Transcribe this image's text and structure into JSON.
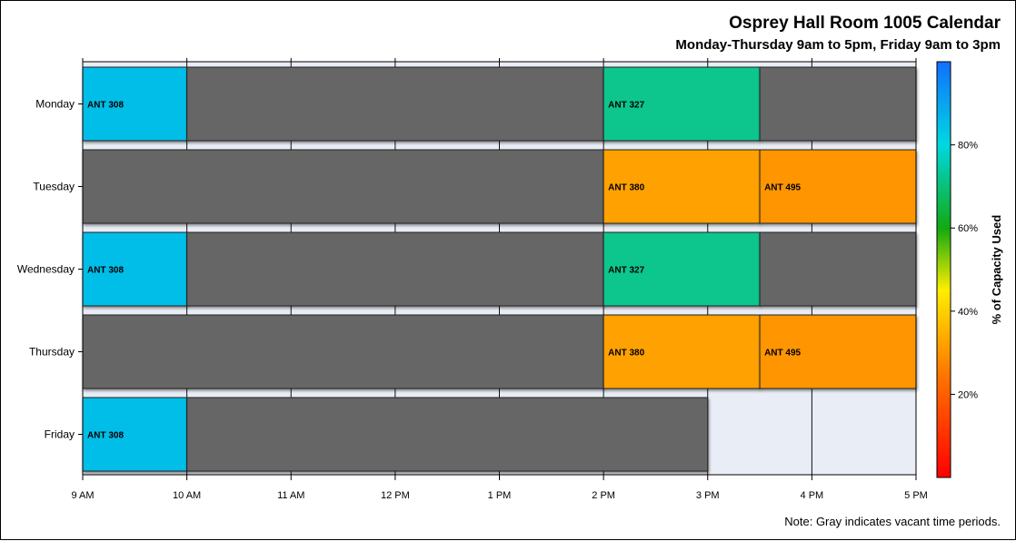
{
  "chart_data": {
    "type": "gantt",
    "title": "Osprey Hall Room 1005 Calendar",
    "subtitle": "Monday-Thursday 9am to 5pm, Friday 9am to 3pm",
    "note": "Note: Gray indicates vacant time periods.",
    "days": [
      "Monday",
      "Tuesday",
      "Wednesday",
      "Thursday",
      "Friday"
    ],
    "x_ticks": [
      {
        "hour": 9,
        "label": "9 AM"
      },
      {
        "hour": 10,
        "label": "10 AM"
      },
      {
        "hour": 11,
        "label": "11 AM"
      },
      {
        "hour": 12,
        "label": "12 PM"
      },
      {
        "hour": 13,
        "label": "1 PM"
      },
      {
        "hour": 14,
        "label": "2 PM"
      },
      {
        "hour": 15,
        "label": "3 PM"
      },
      {
        "hour": 16,
        "label": "4 PM"
      },
      {
        "hour": 17,
        "label": "5 PM"
      }
    ],
    "xlim": [
      9,
      17
    ],
    "grid": true,
    "vacant_color": "#666666",
    "background_color": "#e9edf5",
    "series": [
      {
        "day": "Monday",
        "blocks": [
          {
            "start": 9,
            "end": 10,
            "label": "ANT 308",
            "capacity": 85
          },
          {
            "start": 10,
            "end": 14,
            "label": "",
            "capacity": null
          },
          {
            "start": 14,
            "end": 15.5,
            "label": "ANT 327",
            "capacity": 72
          },
          {
            "start": 15.5,
            "end": 17,
            "label": "",
            "capacity": null
          }
        ]
      },
      {
        "day": "Tuesday",
        "blocks": [
          {
            "start": 9,
            "end": 14,
            "label": "",
            "capacity": null
          },
          {
            "start": 14,
            "end": 15.5,
            "label": "ANT 380",
            "capacity": 32
          },
          {
            "start": 15.5,
            "end": 17,
            "label": "ANT 495",
            "capacity": 30
          }
        ]
      },
      {
        "day": "Wednesday",
        "blocks": [
          {
            "start": 9,
            "end": 10,
            "label": "ANT 308",
            "capacity": 85
          },
          {
            "start": 10,
            "end": 14,
            "label": "",
            "capacity": null
          },
          {
            "start": 14,
            "end": 15.5,
            "label": "ANT 327",
            "capacity": 72
          },
          {
            "start": 15.5,
            "end": 17,
            "label": "",
            "capacity": null
          }
        ]
      },
      {
        "day": "Thursday",
        "blocks": [
          {
            "start": 9,
            "end": 14,
            "label": "",
            "capacity": null
          },
          {
            "start": 14,
            "end": 15.5,
            "label": "ANT 380",
            "capacity": 32
          },
          {
            "start": 15.5,
            "end": 17,
            "label": "ANT 495",
            "capacity": 30
          }
        ]
      },
      {
        "day": "Friday",
        "blocks": [
          {
            "start": 9,
            "end": 10,
            "label": "ANT 308",
            "capacity": 85
          },
          {
            "start": 10,
            "end": 15,
            "label": "",
            "capacity": null
          }
        ]
      }
    ],
    "colorbar": {
      "title": "% of Capacity Used",
      "range": [
        0,
        100
      ],
      "ticks": [
        {
          "value": 20,
          "label": "20%"
        },
        {
          "value": 40,
          "label": "40%"
        },
        {
          "value": 60,
          "label": "60%"
        },
        {
          "value": 80,
          "label": "80%"
        }
      ],
      "stops": [
        {
          "value": 0,
          "color": "#ff0000"
        },
        {
          "value": 25,
          "color": "#ff7700"
        },
        {
          "value": 45,
          "color": "#ffee00"
        },
        {
          "value": 60,
          "color": "#11aa11"
        },
        {
          "value": 80,
          "color": "#00d8e0"
        },
        {
          "value": 100,
          "color": "#1070ff"
        }
      ]
    }
  }
}
